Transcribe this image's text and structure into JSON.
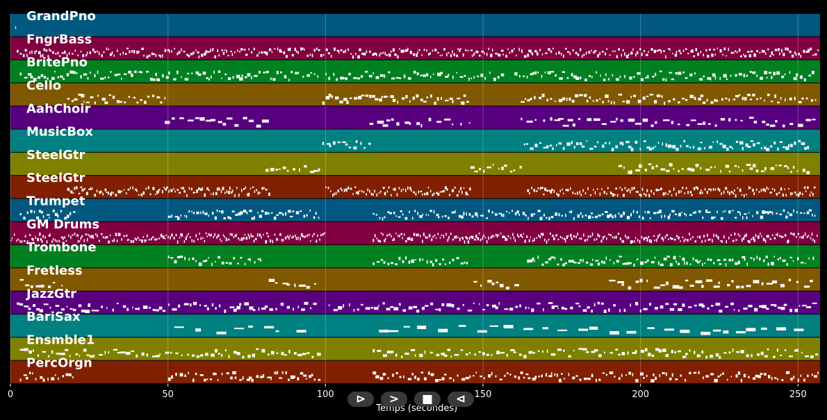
{
  "chart_data": {
    "type": "piano-roll",
    "xlabel": "Temps (secondes)",
    "xlim": [
      0,
      257
    ],
    "xticks": [
      0,
      50,
      100,
      150,
      200,
      250
    ],
    "grid": "vertical",
    "background": "#000000",
    "note_color": "#ffffff",
    "tracks": [
      {
        "name": "GrandPno",
        "color": "#005880",
        "notes": [
          [
            1.5,
            0.5,
            0.7
          ]
        ],
        "density": 0
      },
      {
        "name": "FngrBass",
        "color": "#800040",
        "notes": [
          [
            2,
            255,
            0.5
          ]
        ],
        "density": 1.4
      },
      {
        "name": "BritePno",
        "color": "#008020",
        "notes": [
          [
            3,
            44
          ],
          [
            46,
            52
          ],
          [
            100,
            56
          ],
          [
            160,
            95
          ]
        ],
        "density": 0.9
      },
      {
        "name": "Cello",
        "color": "#805800",
        "notes": [
          [
            18,
            31
          ],
          [
            99,
            46
          ],
          [
            162,
            94
          ]
        ],
        "density": 0.9
      },
      {
        "name": "AahChoir",
        "color": "#580080",
        "notes": [
          [
            49,
            32
          ],
          [
            114,
            33
          ],
          [
            162,
            94
          ]
        ],
        "density": 0.5
      },
      {
        "name": "MusicBox",
        "color": "#008080",
        "notes": [
          [
            99,
            15
          ],
          [
            163,
            91
          ]
        ],
        "density": 0.9
      },
      {
        "name": "SteelGtr",
        "color": "#808000",
        "notes": [
          [
            81,
            17
          ],
          [
            146,
            16
          ],
          [
            193,
            61
          ]
        ],
        "density": 0.7
      },
      {
        "name": "SteelGtr",
        "color": "#802000",
        "notes": [
          [
            18,
            64
          ],
          [
            100,
            46
          ],
          [
            164,
            91
          ]
        ],
        "density": 1.6
      },
      {
        "name": "Trumpet",
        "color": "#005880",
        "notes": [
          [
            3,
            17
          ],
          [
            50,
            48
          ],
          [
            115,
            143
          ]
        ],
        "density": 1.1
      },
      {
        "name": "GM Drums",
        "color": "#800040",
        "notes": [
          [
            0,
            100
          ],
          [
            115,
            141
          ]
        ],
        "density": 1.8
      },
      {
        "name": "Trombone",
        "color": "#008020",
        "notes": [
          [
            50,
            30
          ],
          [
            115,
            30
          ],
          [
            164,
            91
          ]
        ],
        "density": 1.0
      },
      {
        "name": "Fretless",
        "color": "#805800",
        "notes": [
          [
            3,
            15
          ],
          [
            82,
            16
          ],
          [
            147,
            14
          ],
          [
            190,
            67
          ]
        ],
        "density": 0.5
      },
      {
        "name": "JazzGtr",
        "color": "#580080",
        "notes": [
          [
            2,
            96
          ],
          [
            101,
            155
          ]
        ],
        "density": 0.7
      },
      {
        "name": "BariSax",
        "color": "#008080",
        "notes": [
          [
            52,
            40
          ],
          [
            117,
            140
          ]
        ],
        "density": 0.2
      },
      {
        "name": "Ensmble1",
        "color": "#808000",
        "notes": [
          [
            3,
            95
          ],
          [
            115,
            141
          ]
        ],
        "density": 0.7
      },
      {
        "name": "PercOrgn",
        "color": "#802000",
        "notes": [
          [
            3,
            17
          ],
          [
            50,
            48
          ],
          [
            115,
            142
          ]
        ],
        "density": 0.9
      }
    ]
  },
  "controls": {
    "play_label": "⊳",
    "forward_label": ">",
    "stop_label": "■",
    "back_label": "⊲"
  }
}
